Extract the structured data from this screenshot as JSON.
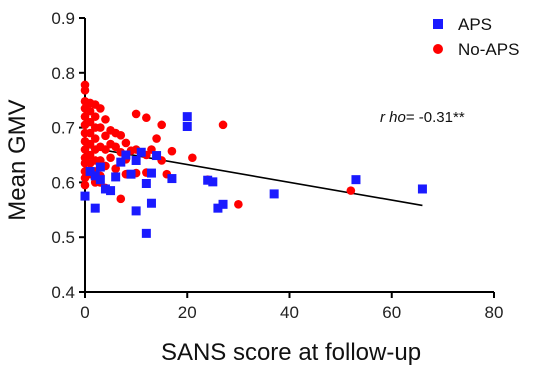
{
  "chart_data": {
    "type": "scatter",
    "xlabel": "SANS score at follow-up",
    "ylabel": "Mean GMV",
    "xlim": [
      0,
      80
    ],
    "ylim": [
      0.4,
      0.9
    ],
    "xticks": [
      "0",
      "20",
      "40",
      "60",
      "80"
    ],
    "yticks": [
      "0.4",
      "0.5",
      "0.6",
      "0.7",
      "0.8",
      "0.9"
    ],
    "annotation": {
      "prefix": "r ho",
      "value": "= -0.31**"
    },
    "colors": {
      "APS": "#1a1aff",
      "No-APS": "#ff0000",
      "axis": "#000000"
    },
    "legend_position": "top-right",
    "trendline": {
      "x": [
        0,
        66
      ],
      "y": [
        0.665,
        0.558
      ]
    },
    "series": [
      {
        "name": "APS",
        "marker": "square",
        "points": [
          [
            0,
            0.575
          ],
          [
            1,
            0.62
          ],
          [
            2,
            0.553
          ],
          [
            2,
            0.612
          ],
          [
            3,
            0.605
          ],
          [
            3,
            0.628
          ],
          [
            4,
            0.588
          ],
          [
            5,
            0.585
          ],
          [
            6,
            0.61
          ],
          [
            7,
            0.637
          ],
          [
            8,
            0.65
          ],
          [
            9,
            0.615
          ],
          [
            10,
            0.548
          ],
          [
            10,
            0.64
          ],
          [
            11,
            0.655
          ],
          [
            12,
            0.507
          ],
          [
            12,
            0.598
          ],
          [
            13,
            0.562
          ],
          [
            13,
            0.617
          ],
          [
            14,
            0.649
          ],
          [
            17,
            0.607
          ],
          [
            20,
            0.72
          ],
          [
            20,
            0.702
          ],
          [
            24,
            0.604
          ],
          [
            25,
            0.601
          ],
          [
            26,
            0.553
          ],
          [
            27,
            0.56
          ],
          [
            37,
            0.579
          ],
          [
            53,
            0.605
          ],
          [
            66,
            0.588
          ]
        ]
      },
      {
        "name": "No-APS",
        "marker": "circle",
        "points": [
          [
            0,
            0.778
          ],
          [
            0,
            0.768
          ],
          [
            0,
            0.748
          ],
          [
            0,
            0.735
          ],
          [
            0,
            0.72
          ],
          [
            0,
            0.705
          ],
          [
            0,
            0.69
          ],
          [
            0,
            0.675
          ],
          [
            0,
            0.66
          ],
          [
            0,
            0.645
          ],
          [
            0,
            0.635
          ],
          [
            0,
            0.62
          ],
          [
            0,
            0.608
          ],
          [
            0,
            0.595
          ],
          [
            1,
            0.745
          ],
          [
            1,
            0.73
          ],
          [
            1,
            0.71
          ],
          [
            1,
            0.69
          ],
          [
            1,
            0.67
          ],
          [
            1,
            0.65
          ],
          [
            1,
            0.635
          ],
          [
            1,
            0.615
          ],
          [
            2,
            0.742
          ],
          [
            2,
            0.72
          ],
          [
            2,
            0.7
          ],
          [
            2,
            0.68
          ],
          [
            2,
            0.66
          ],
          [
            2,
            0.64
          ],
          [
            2,
            0.62
          ],
          [
            2,
            0.6
          ],
          [
            3,
            0.735
          ],
          [
            3,
            0.7
          ],
          [
            3,
            0.665
          ],
          [
            3,
            0.64
          ],
          [
            3,
            0.612
          ],
          [
            3,
            0.6
          ],
          [
            4,
            0.715
          ],
          [
            4,
            0.685
          ],
          [
            4,
            0.66
          ],
          [
            4,
            0.63
          ],
          [
            4,
            0.59
          ],
          [
            5,
            0.695
          ],
          [
            5,
            0.67
          ],
          [
            5,
            0.645
          ],
          [
            6,
            0.69
          ],
          [
            6,
            0.665
          ],
          [
            6,
            0.625
          ],
          [
            7,
            0.686
          ],
          [
            7,
            0.655
          ],
          [
            7,
            0.57
          ],
          [
            8,
            0.672
          ],
          [
            8,
            0.642
          ],
          [
            8,
            0.615
          ],
          [
            9,
            0.658
          ],
          [
            10,
            0.725
          ],
          [
            10,
            0.66
          ],
          [
            10,
            0.617
          ],
          [
            11,
            0.655
          ],
          [
            12,
            0.718
          ],
          [
            12,
            0.65
          ],
          [
            12,
            0.618
          ],
          [
            13,
            0.66
          ],
          [
            14,
            0.68
          ],
          [
            15,
            0.705
          ],
          [
            15,
            0.64
          ],
          [
            16,
            0.615
          ],
          [
            17,
            0.657
          ],
          [
            21,
            0.645
          ],
          [
            24,
            0.605
          ],
          [
            27,
            0.705
          ],
          [
            30,
            0.56
          ],
          [
            52,
            0.585
          ]
        ]
      }
    ]
  }
}
